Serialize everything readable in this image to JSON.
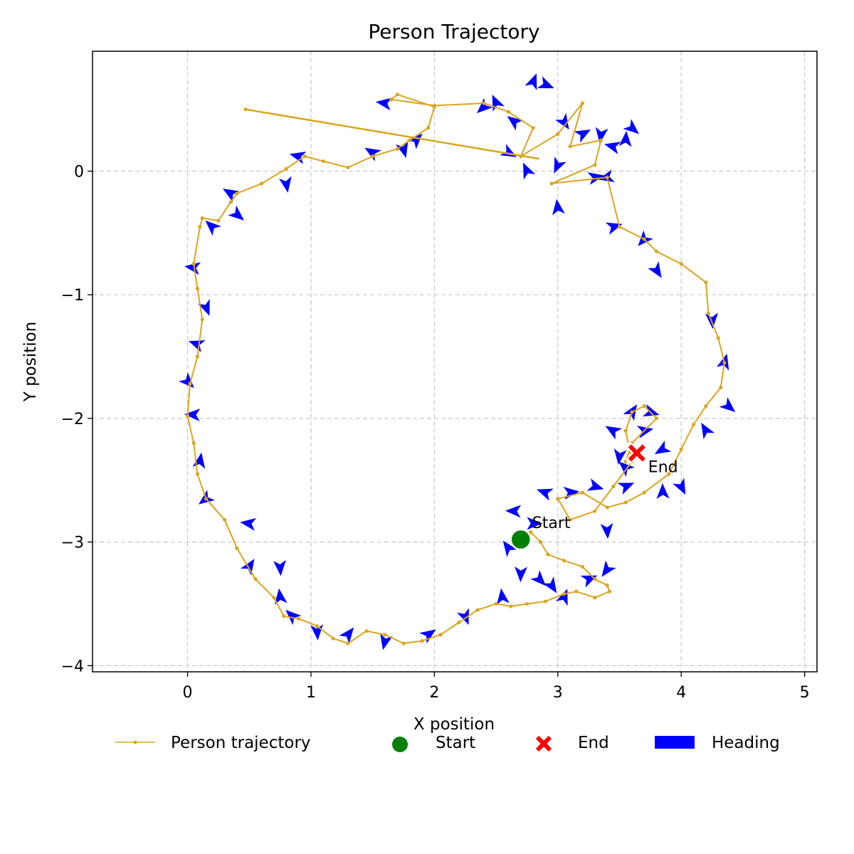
{
  "chart_data": {
    "type": "line",
    "title": "Person Trajectory",
    "xlabel": "X position",
    "ylabel": "Y position",
    "xlim": [
      -0.77,
      5.1
    ],
    "ylim": [
      -4.05,
      0.97
    ],
    "xticks": [
      0,
      1,
      2,
      3,
      4,
      5
    ],
    "yticks": [
      0,
      -1,
      -2,
      -3,
      -4
    ],
    "xtick_labels": [
      "0",
      "1",
      "2",
      "3",
      "4",
      "5"
    ],
    "ytick_labels": [
      "0",
      "−1",
      "−2",
      "−3",
      "−4"
    ],
    "grid": true,
    "legend_position": "bottom-center",
    "colors": {
      "trajectory": "#DAA520",
      "start": "#008000",
      "end": "#FF0000",
      "heading": "#0000FF"
    },
    "series": [
      {
        "name": "Person trajectory",
        "x": [
          2.7,
          2.78,
          2.86,
          2.92,
          3.05,
          3.2,
          3.3,
          3.4,
          3.42,
          3.3,
          3.15,
          3.05,
          2.9,
          2.75,
          2.62,
          2.5,
          2.35,
          2.2,
          2.05,
          1.9,
          1.75,
          1.6,
          1.45,
          1.3,
          1.18,
          1.05,
          0.9,
          0.78,
          0.7,
          0.55,
          0.4,
          0.3,
          0.15,
          0.08,
          0.05,
          0.0,
          0.02,
          0.08,
          0.12,
          0.08,
          0.05,
          0.1,
          0.12,
          0.25,
          0.35,
          0.4,
          0.6,
          0.8,
          0.95,
          1.1,
          1.3,
          1.5,
          1.7,
          1.8,
          1.95,
          2.0,
          1.7,
          1.65,
          2.0,
          2.4,
          2.6,
          2.8,
          2.7,
          3.0,
          3.2,
          3.1,
          3.35,
          3.3,
          2.95,
          3.4,
          3.5,
          3.7,
          3.8,
          4.0,
          4.2,
          4.22,
          4.3,
          4.35,
          4.32,
          4.2,
          4.1,
          4.0,
          3.9,
          3.7,
          3.55,
          3.4,
          3.2,
          3.0,
          3.1,
          3.3,
          3.45,
          3.6,
          3.55,
          3.6,
          3.7,
          3.8,
          3.6,
          3.55,
          3.65
        ],
        "y": [
          -2.98,
          -2.92,
          -3.0,
          -3.1,
          -3.15,
          -3.2,
          -3.3,
          -3.35,
          -3.4,
          -3.45,
          -3.4,
          -3.42,
          -3.48,
          -3.5,
          -3.52,
          -3.5,
          -3.55,
          -3.65,
          -3.75,
          -3.8,
          -3.82,
          -3.75,
          -3.72,
          -3.82,
          -3.78,
          -3.68,
          -3.62,
          -3.6,
          -3.45,
          -3.3,
          -3.05,
          -2.82,
          -2.65,
          -2.45,
          -2.2,
          -1.98,
          -1.72,
          -1.5,
          -1.2,
          -0.95,
          -0.75,
          -0.45,
          -0.38,
          -0.4,
          -0.25,
          -0.18,
          -0.1,
          0.02,
          0.12,
          0.08,
          0.03,
          0.12,
          0.18,
          0.25,
          0.35,
          0.52,
          0.62,
          0.58,
          0.53,
          0.55,
          0.48,
          0.35,
          0.12,
          0.3,
          0.55,
          0.2,
          0.25,
          0.05,
          -0.1,
          -0.05,
          -0.45,
          -0.55,
          -0.65,
          -0.75,
          -0.9,
          -1.15,
          -1.35,
          -1.55,
          -1.75,
          -1.9,
          -2.05,
          -2.25,
          -2.45,
          -2.6,
          -2.68,
          -2.72,
          -2.6,
          -2.65,
          -2.82,
          -2.75,
          -2.55,
          -2.35,
          -2.1,
          -1.95,
          -1.9,
          -2.0,
          -2.2,
          -2.35,
          -2.28
        ]
      }
    ],
    "markers": {
      "start": {
        "label": "Start",
        "x": 2.7,
        "y": -2.98
      },
      "end": {
        "label": "End",
        "x": 3.64,
        "y": -2.28
      }
    },
    "outlier_segment": {
      "x": [
        2.85,
        0.47
      ],
      "y": [
        0.1,
        0.5
      ]
    },
    "headings": [
      [
        2.7,
        -3.25,
        -1.6
      ],
      [
        2.6,
        -3.05,
        2.2
      ],
      [
        2.85,
        -3.3,
        -0.8
      ],
      [
        3.05,
        -3.45,
        1.2
      ],
      [
        3.25,
        -3.3,
        0.4
      ],
      [
        3.4,
        -3.22,
        -2.2
      ],
      [
        2.95,
        -3.35,
        -1.0
      ],
      [
        2.8,
        -2.85,
        0.0
      ],
      [
        2.65,
        -2.75,
        3.1
      ],
      [
        2.9,
        -2.6,
        2.8
      ],
      [
        3.1,
        -2.6,
        0.1
      ],
      [
        3.3,
        -2.55,
        -0.3
      ],
      [
        3.4,
        -2.9,
        -1.5
      ],
      [
        3.55,
        -2.55,
        0.4
      ],
      [
        2.55,
        -3.45,
        1.7
      ],
      [
        2.25,
        -3.6,
        -1.2
      ],
      [
        1.95,
        -3.75,
        0.6
      ],
      [
        1.6,
        -3.8,
        -1.8
      ],
      [
        1.3,
        -3.75,
        0.9
      ],
      [
        1.05,
        -3.72,
        -1.5
      ],
      [
        0.85,
        -3.6,
        2.4
      ],
      [
        0.75,
        -3.45,
        1.7
      ],
      [
        0.75,
        -3.2,
        -1.5
      ],
      [
        0.5,
        -3.2,
        1.0
      ],
      [
        0.5,
        -2.85,
        3.0
      ],
      [
        0.15,
        -2.65,
        -2.5
      ],
      [
        0.1,
        -2.35,
        1.4
      ],
      [
        0.05,
        -1.97,
        3.1
      ],
      [
        0.0,
        -1.7,
        -0.8
      ],
      [
        0.08,
        -1.4,
        2.8
      ],
      [
        0.15,
        -1.1,
        -1.2
      ],
      [
        0.05,
        -0.78,
        3.0
      ],
      [
        0.2,
        -0.45,
        2.4
      ],
      [
        0.4,
        -0.35,
        -0.7
      ],
      [
        0.35,
        -0.18,
        2.6
      ],
      [
        0.8,
        -0.1,
        -1.4
      ],
      [
        0.9,
        0.12,
        2.9
      ],
      [
        1.5,
        0.15,
        2.6
      ],
      [
        1.75,
        0.18,
        -1.3
      ],
      [
        1.85,
        0.25,
        0.8
      ],
      [
        2.4,
        0.52,
        -2.4
      ],
      [
        2.5,
        0.55,
        2.0
      ],
      [
        1.6,
        0.55,
        3.0
      ],
      [
        2.6,
        0.15,
        -0.5
      ],
      [
        2.65,
        0.4,
        2.5
      ],
      [
        2.8,
        0.72,
        1.2
      ],
      [
        2.9,
        0.7,
        -0.4
      ],
      [
        3.05,
        0.4,
        -1.0
      ],
      [
        3.2,
        0.3,
        0.5
      ],
      [
        3.35,
        0.3,
        -1.7
      ],
      [
        3.45,
        0.2,
        2.9
      ],
      [
        3.55,
        0.25,
        1.5
      ],
      [
        3.6,
        0.35,
        -0.7
      ],
      [
        2.75,
        0.0,
        2.0
      ],
      [
        3.0,
        0.05,
        -2.0
      ],
      [
        3.3,
        -0.05,
        0.2
      ],
      [
        3.0,
        -0.3,
        1.7
      ],
      [
        3.45,
        -0.45,
        0.3
      ],
      [
        3.7,
        -0.55,
        -2.3
      ],
      [
        3.8,
        -0.8,
        -1.0
      ],
      [
        4.25,
        -1.2,
        -1.5
      ],
      [
        4.35,
        -1.55,
        1.3
      ],
      [
        4.38,
        -1.9,
        -0.7
      ],
      [
        4.2,
        -2.1,
        2.1
      ],
      [
        4.0,
        -2.55,
        -1.1
      ],
      [
        3.85,
        -2.6,
        1.6
      ],
      [
        3.45,
        -2.1,
        2.6
      ],
      [
        3.5,
        -2.3,
        -1.7
      ],
      [
        3.7,
        -2.1,
        0.2
      ],
      [
        3.85,
        -2.25,
        -2.6
      ],
      [
        3.55,
        -2.4,
        2.4
      ],
      [
        3.6,
        -1.95,
        1.0
      ],
      [
        3.75,
        -1.95,
        -0.3
      ],
      [
        3.4,
        -0.05,
        -2.9
      ]
    ],
    "legend": [
      {
        "key": "trajectory",
        "label": "Person trajectory"
      },
      {
        "key": "start",
        "label": "Start"
      },
      {
        "key": "end",
        "label": "End"
      },
      {
        "key": "heading",
        "label": "Heading"
      }
    ]
  }
}
